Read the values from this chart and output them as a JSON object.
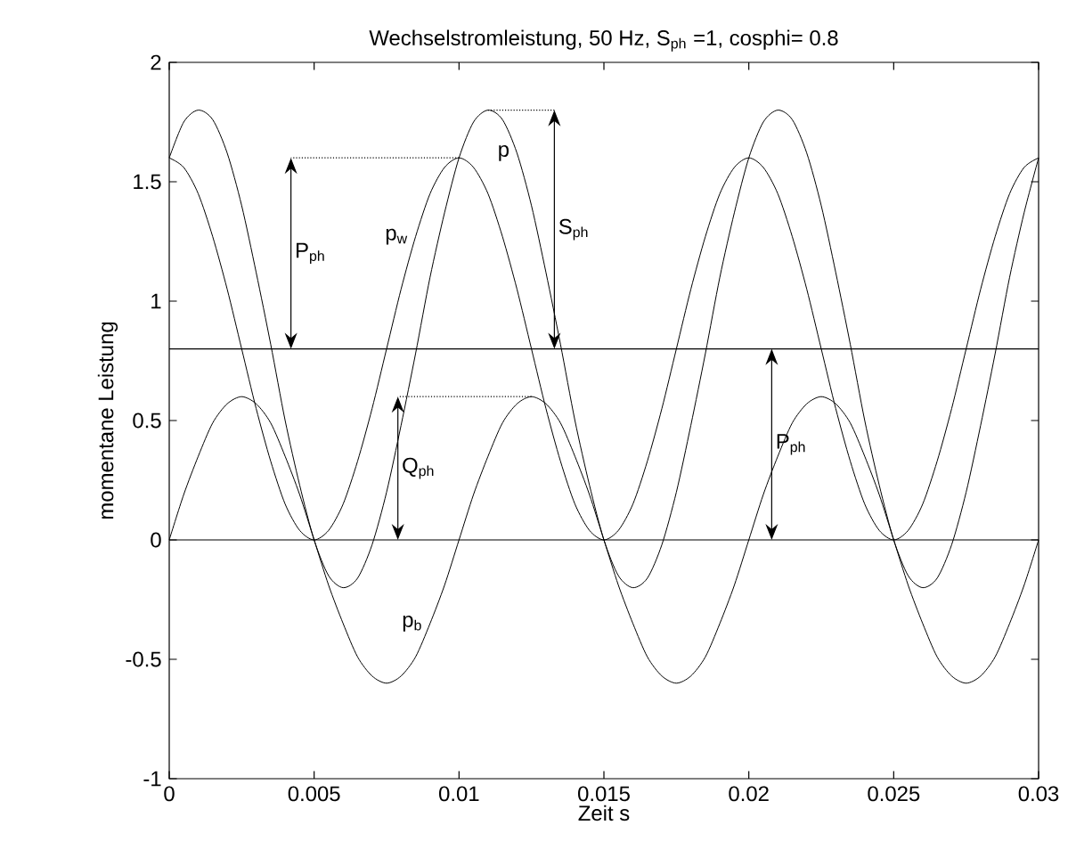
{
  "chart_data": {
    "type": "line",
    "title": "Wechselstromleistung,  50 Hz,  S$_{ph}$ =1,  cosphi= 0.8",
    "xlabel": "Zeit s",
    "ylabel": "momentane Leistung",
    "x": [
      0,
      0.0005,
      0.001,
      0.0015,
      0.002,
      0.0025,
      0.003,
      0.0035,
      0.004,
      0.0045,
      0.005,
      0.0055,
      0.006,
      0.0065,
      0.007,
      0.0075,
      0.008,
      0.0085,
      0.009,
      0.0095,
      0.01,
      0.0105,
      0.011,
      0.0115,
      0.012,
      0.0125,
      0.013,
      0.0135,
      0.014,
      0.0145,
      0.015,
      0.0155,
      0.016,
      0.0165,
      0.017,
      0.0175,
      0.018,
      0.0185,
      0.019,
      0.0195,
      0.02,
      0.0205,
      0.021,
      0.0215,
      0.022,
      0.0225,
      0.023,
      0.0235,
      0.024,
      0.0245,
      0.025,
      0.0255,
      0.026,
      0.0265,
      0.027,
      0.0275,
      0.028,
      0.0285,
      0.029,
      0.0295,
      0.03
    ],
    "series": [
      {
        "color": "#000000",
        "values": [
          1.6,
          1.75,
          1.8,
          1.76,
          1.62,
          1.4,
          1.12,
          0.82,
          0.5,
          0.23,
          0,
          -0.15,
          -0.2,
          -0.16,
          -0.02,
          0.2,
          0.48,
          0.78,
          1.1,
          1.37,
          1.6,
          1.75,
          1.8,
          1.76,
          1.62,
          1.4,
          1.12,
          0.82,
          0.5,
          0.23,
          0,
          -0.15,
          -0.2,
          -0.16,
          -0.02,
          0.2,
          0.48,
          0.78,
          1.1,
          1.37,
          1.6,
          1.75,
          1.8,
          1.76,
          1.62,
          1.4,
          1.12,
          0.82,
          0.5,
          0.23,
          0,
          -0.15,
          -0.2,
          -0.16,
          -0.02,
          0.2,
          0.48,
          0.78,
          1.1,
          1.37,
          1.6
        ]
      },
      {
        "color": "#000000",
        "values": [
          1.6,
          1.56,
          1.45,
          1.27,
          1.05,
          0.8,
          0.55,
          0.33,
          0.15,
          0.04,
          0,
          0.04,
          0.15,
          0.33,
          0.55,
          0.8,
          1.05,
          1.27,
          1.45,
          1.56,
          1.6,
          1.56,
          1.45,
          1.27,
          1.05,
          0.8,
          0.55,
          0.33,
          0.15,
          0.04,
          0,
          0.04,
          0.15,
          0.33,
          0.55,
          0.8,
          1.05,
          1.27,
          1.45,
          1.56,
          1.6,
          1.56,
          1.45,
          1.27,
          1.05,
          0.8,
          0.55,
          0.33,
          0.15,
          0.04,
          0,
          0.04,
          0.15,
          0.33,
          0.55,
          0.8,
          1.05,
          1.27,
          1.45,
          1.56,
          1.6
        ]
      },
      {
        "color": "#000000",
        "values": [
          0,
          0.19,
          0.35,
          0.49,
          0.57,
          0.6,
          0.57,
          0.49,
          0.35,
          0.19,
          0,
          -0.19,
          -0.35,
          -0.49,
          -0.57,
          -0.6,
          -0.57,
          -0.49,
          -0.35,
          -0.19,
          0,
          0.19,
          0.35,
          0.49,
          0.57,
          0.6,
          0.57,
          0.49,
          0.35,
          0.19,
          0,
          -0.19,
          -0.35,
          -0.49,
          -0.57,
          -0.6,
          -0.57,
          -0.49,
          -0.35,
          -0.19,
          0,
          0.19,
          0.35,
          0.49,
          0.57,
          0.6,
          0.57,
          0.49,
          0.35,
          0.19,
          0,
          -0.19,
          -0.35,
          -0.49,
          -0.57,
          -0.6,
          -0.57,
          -0.49,
          -0.35,
          -0.19,
          0
        ]
      }
    ],
    "ref_lines": [
      {
        "axis": "y",
        "value": 0.8,
        "color": "#000000"
      },
      {
        "axis": "y",
        "value": 0,
        "color": "#000000"
      }
    ],
    "annotations": [
      "P$_{ph}$",
      "S$_{ph}$",
      "Q$_{ph}$",
      "P$_{ph}$",
      {
        "text": "p",
        "x": 0.012,
        "y": 1.62
      },
      {
        "text": "p$_{w}$",
        "x": 0.0085,
        "y": 1.27
      },
      {
        "text": "p$_{b}$",
        "x": 0.009,
        "y": -0.35
      }
    ],
    "xlim": [
      0,
      0.03
    ],
    "xticks": [
      0,
      0.005,
      0.01,
      0.015,
      0.02,
      0.025,
      0.03
    ],
    "ylim": [
      -1,
      2
    ],
    "yticks": [
      -1,
      -0.5,
      0,
      0.5,
      1,
      1.5,
      2
    ],
    "grid": false,
    "marker": "none",
    "line_style": "solid"
  }
}
